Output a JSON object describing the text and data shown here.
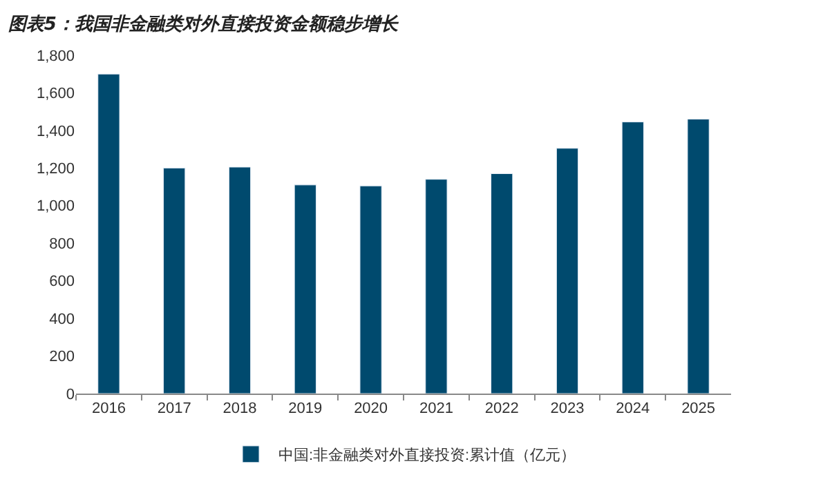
{
  "chart_data": {
    "type": "bar",
    "title": "图表5：我国非金融类对外直接投资金额稳步增长",
    "categories": [
      "2016",
      "2017",
      "2018",
      "2019",
      "2020",
      "2021",
      "2022",
      "2023",
      "2024",
      "2025"
    ],
    "series": [
      {
        "name": "中国:非金融类对外直接投资:累计值（亿元）",
        "color": "#004a6e",
        "values": [
          1700,
          1200,
          1205,
          1110,
          1105,
          1140,
          1170,
          1305,
          1445,
          1460
        ]
      }
    ],
    "ylim": [
      0,
      1800
    ],
    "yticks": [
      {
        "value": 0,
        "label": "0"
      },
      {
        "value": 200,
        "label": "200"
      },
      {
        "value": 400,
        "label": "400"
      },
      {
        "value": 600,
        "label": "600"
      },
      {
        "value": 800,
        "label": "800"
      },
      {
        "value": 1000,
        "label": "1,000"
      },
      {
        "value": 1200,
        "label": "1,200"
      },
      {
        "value": 1400,
        "label": "1,400"
      },
      {
        "value": 1600,
        "label": "1,600"
      },
      {
        "value": 1800,
        "label": "1,800"
      }
    ],
    "legend": "bottom"
  }
}
